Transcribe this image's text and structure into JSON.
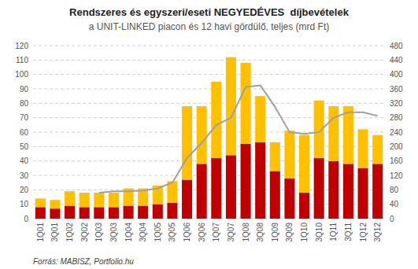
{
  "chart_data": {
    "type": "bar",
    "title": "Rendszeres és egyszeri/eseti NEGYEDÉVES  díjbevételek",
    "subtitle": "a UNIT-LINKED piacon és 12 havi gördülő, teljes (mrd Ft)",
    "source": "Forrás: MABISZ, Portfolio.hu",
    "stacked": true,
    "grid": true,
    "categories": [
      "1Q01",
      "3Q01",
      "1Q02",
      "3Q02",
      "1Q03",
      "3Q03",
      "1Q04",
      "3Q04",
      "1Q05",
      "3Q05",
      "1Q06",
      "3Q06",
      "1Q07",
      "3Q07",
      "1Q08",
      "3Q08",
      "1Q09",
      "3Q09",
      "1Q10",
      "3Q10",
      "1Q11",
      "3Q11",
      "1Q12",
      "3Q12"
    ],
    "series": [
      {
        "type": "bar",
        "color": "#c00000",
        "values": [
          8,
          7,
          9,
          8,
          8,
          8,
          9,
          9,
          10,
          11,
          27,
          38,
          42,
          44,
          52,
          53,
          33,
          28,
          18,
          42,
          40,
          38,
          35,
          38
        ]
      },
      {
        "type": "bar",
        "color": "#ffc000",
        "values": [
          6,
          6,
          10,
          10,
          10,
          10,
          12,
          12,
          13,
          15,
          51,
          40,
          53,
          68,
          56,
          32,
          20,
          33,
          40,
          40,
          38,
          40,
          27,
          20
        ]
      },
      {
        "type": "line",
        "axis": "y2",
        "color": "#a0a0a0",
        "values": [
          null,
          null,
          null,
          null,
          72,
          76,
          76,
          78,
          84,
          100,
          168,
          210,
          260,
          280,
          365,
          370,
          310,
          240,
          235,
          240,
          280,
          295,
          295,
          285
        ]
      }
    ],
    "ylim": [
      0,
      120
    ],
    "yticks": [
      0,
      10,
      20,
      30,
      40,
      50,
      60,
      70,
      80,
      90,
      100,
      110,
      120
    ],
    "y2lim": [
      0,
      480
    ],
    "y2ticks": [
      0,
      40,
      80,
      120,
      160,
      200,
      240,
      280,
      320,
      360,
      400,
      440,
      480
    ]
  }
}
